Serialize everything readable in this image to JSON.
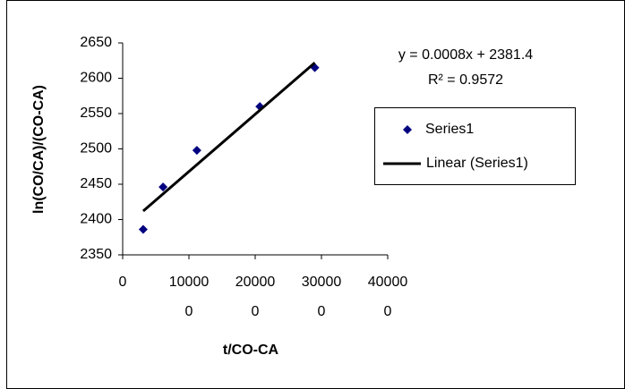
{
  "chart_data": {
    "type": "scatter",
    "xlabel": "t/CO-CA",
    "ylabel": "ln(CO/CA)/(CO-CA)",
    "series": [
      {
        "name": "Series1",
        "color": "#000080",
        "x": [
          31000,
          61000,
          112000,
          207000,
          290000
        ],
        "values": [
          2386,
          2446,
          2498,
          2560,
          2615
        ]
      },
      {
        "name": "Linear (Series1)",
        "color": "#000000",
        "type": "line",
        "x": [
          31000,
          290000
        ],
        "values": [
          2412,
          2622
        ]
      }
    ],
    "annotations": [
      "y = 0.0008x + 2381.4",
      "R² = 0.9572"
    ],
    "xlim": [
      0,
      400000
    ],
    "xticks": [
      0,
      100000,
      200000,
      300000,
      400000
    ],
    "ylim": [
      2350,
      2650
    ],
    "yticks": [
      2350,
      2400,
      2450,
      2500,
      2550,
      2600,
      2650
    ],
    "grid": false,
    "legend": "right"
  }
}
